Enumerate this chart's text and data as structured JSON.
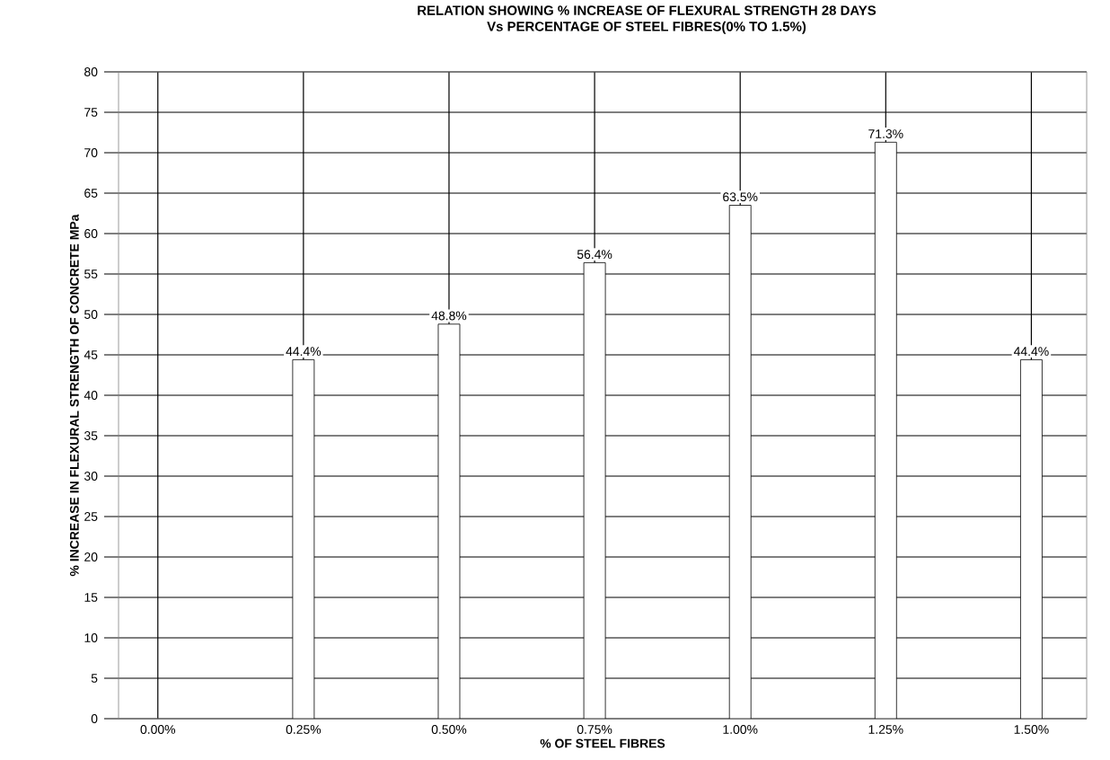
{
  "chart_data": {
    "type": "bar",
    "title": "RELATION SHOWING % INCREASE OF  FLEXURAL STRENGTH 28 DAYS",
    "subtitle": "Vs PERCENTAGE OF STEEL FIBRES(0% TO 1.5%)",
    "xlabel": "% OF STEEL FIBRES",
    "ylabel": "% INCREASE IN FLEXURAL STRENGTH OF CONCRETE MPa",
    "categories": [
      "0.00%",
      "0.25%",
      "0.50%",
      "0.75%",
      "1.00%",
      "1.25%",
      "1.50%"
    ],
    "values": [
      null,
      44.4,
      48.8,
      56.4,
      63.5,
      71.3,
      44.4
    ],
    "value_labels": [
      null,
      "44.4%",
      "48.8%",
      "56.4%",
      "63.5%",
      "71.3%",
      "44.4%"
    ],
    "color": "#ffffff",
    "ylim": [
      0,
      80
    ],
    "yticks": [
      0,
      5,
      10,
      15,
      20,
      25,
      30,
      35,
      40,
      45,
      50,
      55,
      60,
      65,
      70,
      75,
      80
    ],
    "grid": true
  }
}
